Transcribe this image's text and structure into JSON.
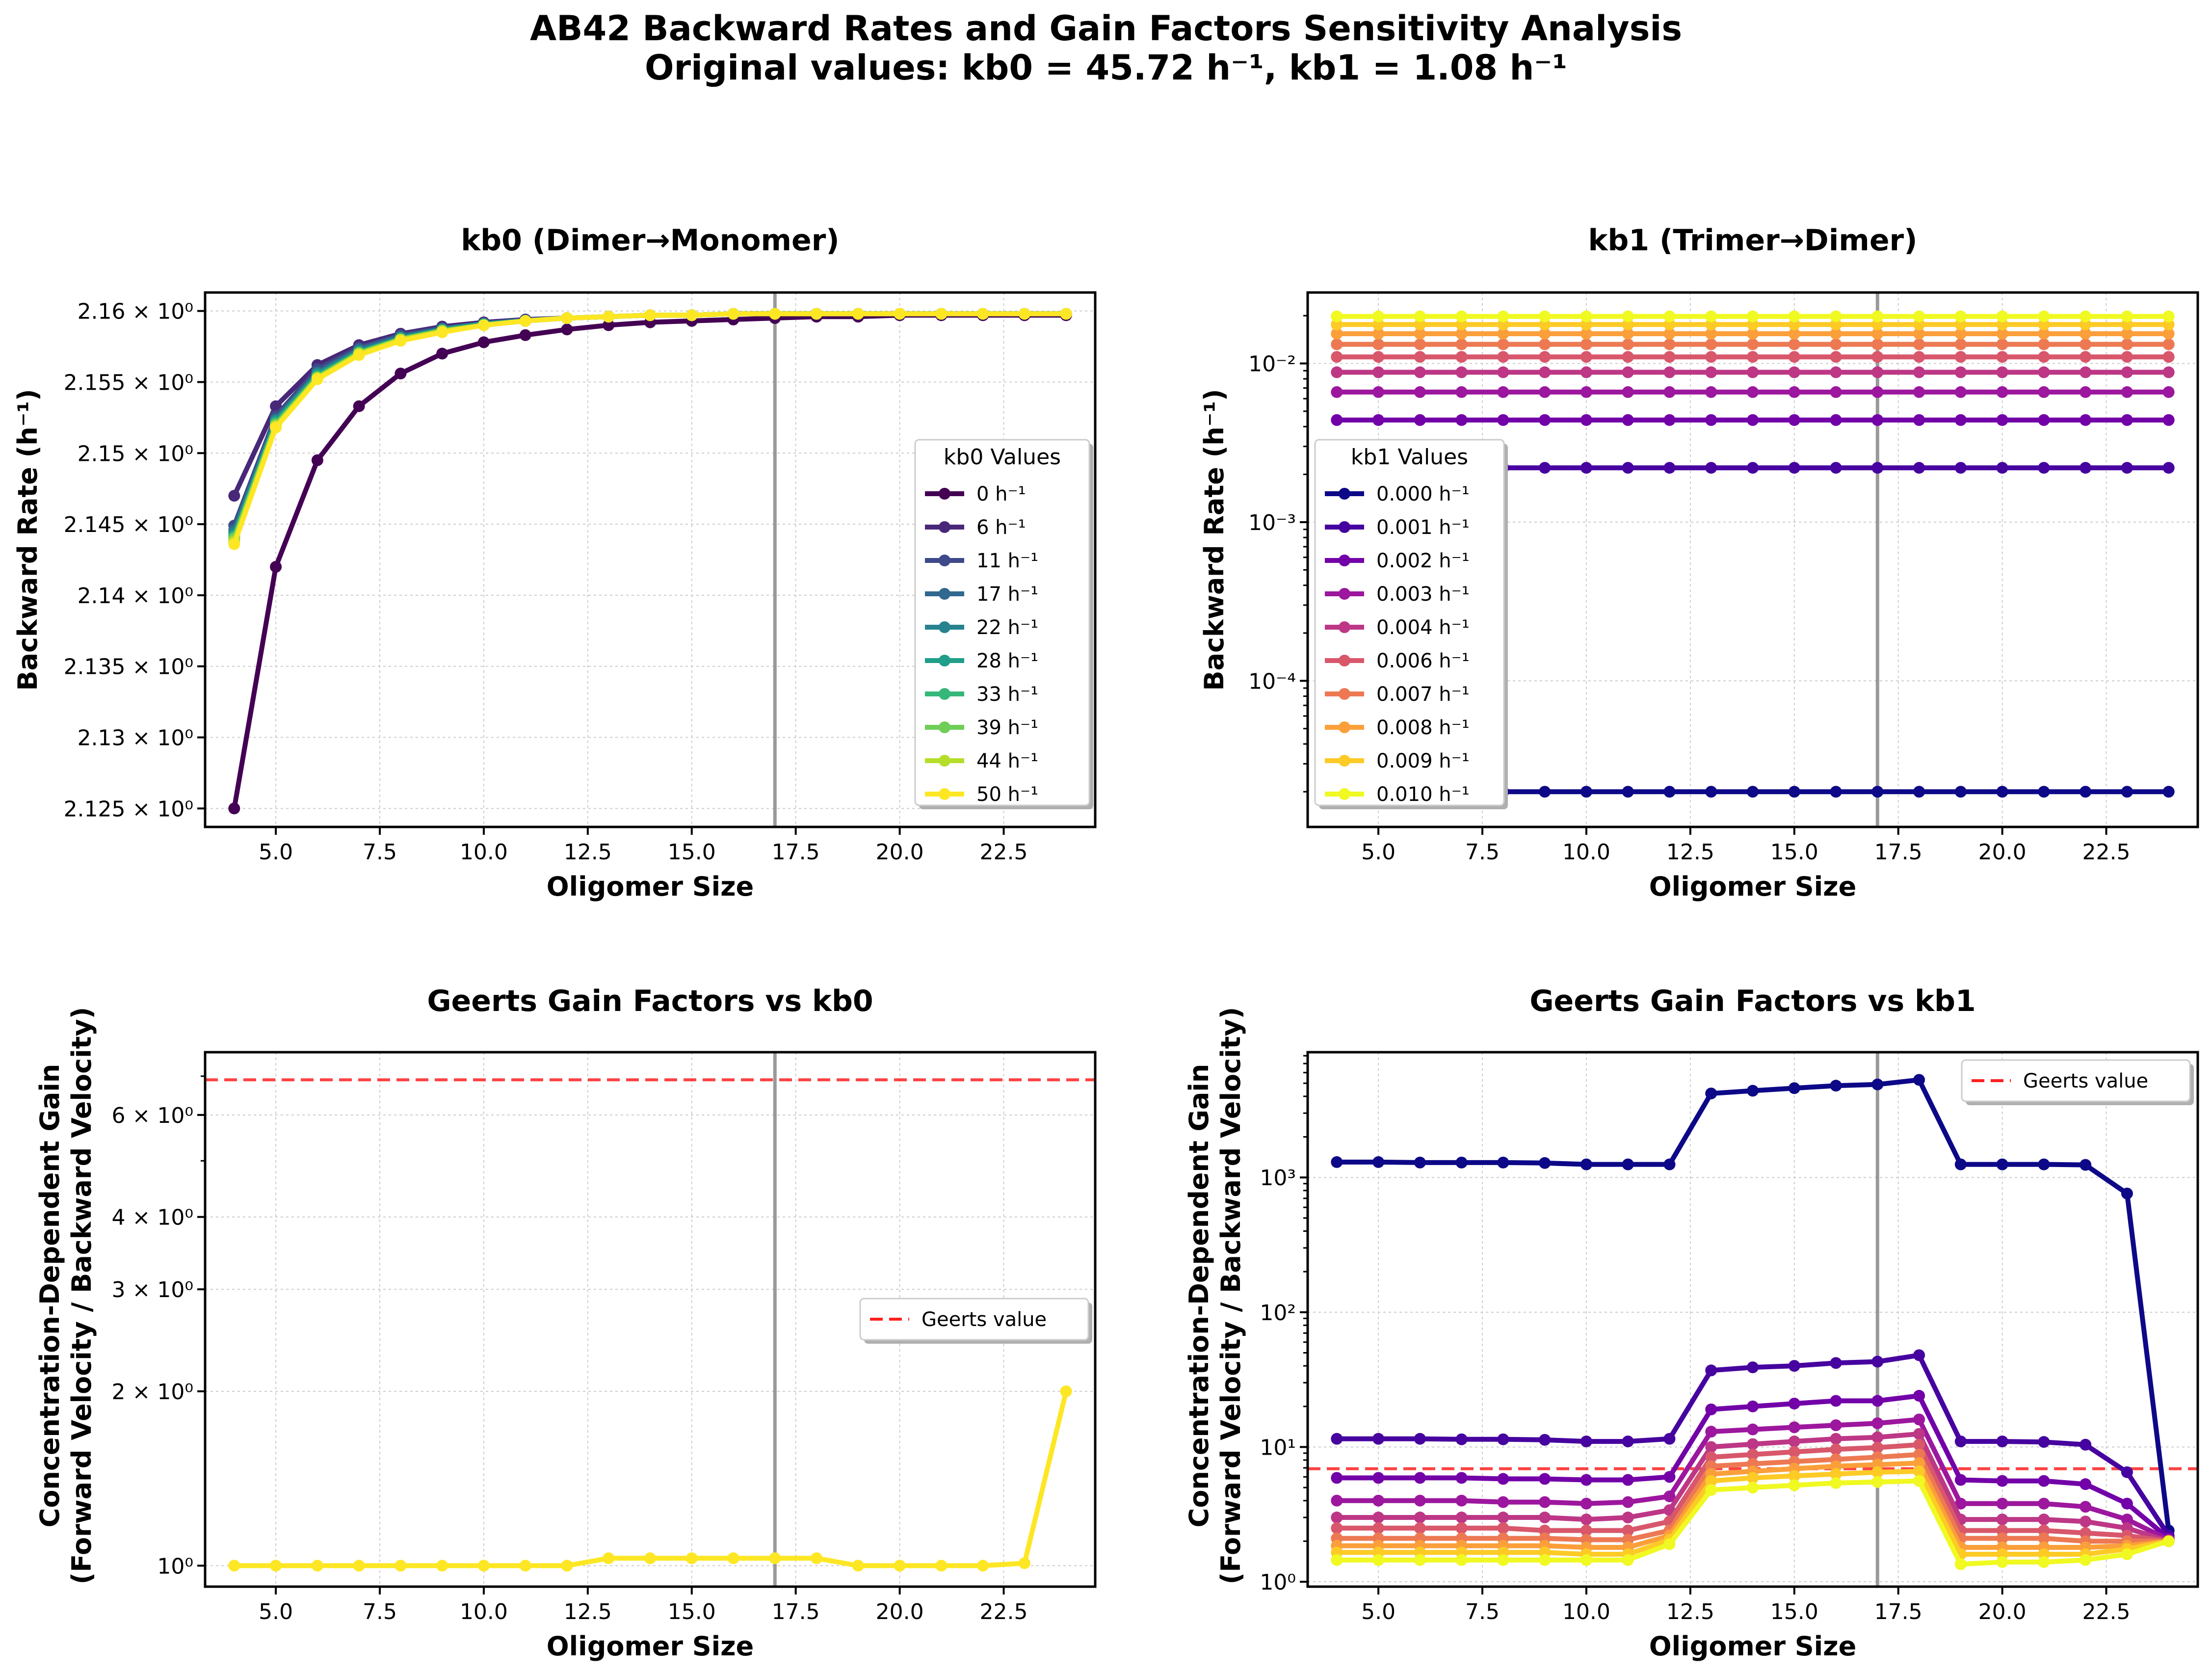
{
  "figure": {
    "title_line1": "AB42 Backward Rates and Gain Factors Sensitivity Analysis",
    "title_line2": "Original values: kb0 = 45.72 h⁻¹, kb1 = 1.08 h⁻¹"
  },
  "chart_data": [
    {
      "id": "kb0-rates",
      "type": "line",
      "title": "kb0 (Dimer→Monomer)",
      "xlabel": "Oligomer Size",
      "ylabel": "Backward Rate (h⁻¹)",
      "xlim": [
        3.3,
        24.7
      ],
      "ylim": [
        2.1237,
        2.1613
      ],
      "yscale": "linear",
      "vline": 17,
      "grid": true,
      "x_ticks": [
        5.0,
        7.5,
        10.0,
        12.5,
        15.0,
        17.5,
        20.0,
        22.5
      ],
      "x_tick_labels": [
        "5.0",
        "7.5",
        "10.0",
        "12.5",
        "15.0",
        "17.5",
        "20.0",
        "22.5"
      ],
      "y_ticks": [
        2.125,
        2.13,
        2.135,
        2.14,
        2.145,
        2.15,
        2.155,
        2.16
      ],
      "y_tick_labels": [
        "2.125 × 10⁰",
        "2.13 × 10⁰",
        "2.135 × 10⁰",
        "2.14 × 10⁰",
        "2.145 × 10⁰",
        "2.15 × 10⁰",
        "2.155 × 10⁰",
        "2.16 × 10⁰"
      ],
      "legend": {
        "title": "kb0 Values",
        "placement": "center-right"
      },
      "x": [
        4,
        5,
        6,
        7,
        8,
        9,
        10,
        11,
        12,
        13,
        14,
        15,
        16,
        17,
        18,
        19,
        20,
        21,
        22,
        23,
        24
      ],
      "series": [
        {
          "name": "0 h⁻¹",
          "color": "#440154",
          "values": [
            2.125,
            2.142,
            2.1495,
            2.1533,
            2.1556,
            2.157,
            2.1578,
            2.1583,
            2.1587,
            2.159,
            2.1592,
            2.1593,
            2.1594,
            2.1595,
            2.1596,
            2.1596,
            2.1597,
            2.1597,
            2.1597,
            2.1597,
            2.1597
          ]
        },
        {
          "name": "6 h⁻¹",
          "color": "#482878",
          "values": [
            2.147,
            2.1533,
            2.1562,
            2.1576,
            2.1584,
            2.1589,
            2.1592,
            2.1594,
            2.1595,
            2.1596,
            2.1597,
            2.1597,
            2.1598,
            2.1598,
            2.1598,
            2.1598,
            2.1598,
            2.1598,
            2.1598,
            2.1598,
            2.1598
          ]
        },
        {
          "name": "11 h⁻¹",
          "color": "#3e4989",
          "values": [
            2.1449,
            2.1526,
            2.1559,
            2.1574,
            2.1583,
            2.1588,
            2.1591,
            2.1594,
            2.1595,
            2.1596,
            2.1597,
            2.1597,
            2.1598,
            2.1598,
            2.1598,
            2.1598,
            2.1598,
            2.1598,
            2.1598,
            2.1598,
            2.1598
          ]
        },
        {
          "name": "17 h⁻¹",
          "color": "#31688e",
          "values": [
            2.1446,
            2.1524,
            2.1557,
            2.1573,
            2.1582,
            2.1587,
            2.1591,
            2.1593,
            2.1595,
            2.1596,
            2.1597,
            2.1597,
            2.1598,
            2.1598,
            2.1598,
            2.1598,
            2.1598,
            2.1598,
            2.1598,
            2.1598,
            2.1598
          ]
        },
        {
          "name": "22 h⁻¹",
          "color": "#26828e",
          "values": [
            2.1444,
            2.1523,
            2.1556,
            2.1572,
            2.1581,
            2.1587,
            2.1591,
            2.1593,
            2.1595,
            2.1596,
            2.1597,
            2.1597,
            2.1598,
            2.1598,
            2.1598,
            2.1598,
            2.1598,
            2.1598,
            2.1598,
            2.1598,
            2.1598
          ]
        },
        {
          "name": "28 h⁻¹",
          "color": "#1f9e89",
          "values": [
            2.1442,
            2.1522,
            2.1555,
            2.1571,
            2.1581,
            2.1587,
            2.1591,
            2.1593,
            2.1595,
            2.1596,
            2.1597,
            2.1597,
            2.1598,
            2.1598,
            2.1598,
            2.1598,
            2.1598,
            2.1598,
            2.1598,
            2.1598,
            2.1598
          ]
        },
        {
          "name": "33 h⁻¹",
          "color": "#35b779",
          "values": [
            2.1441,
            2.1521,
            2.1554,
            2.1571,
            2.158,
            2.1586,
            2.159,
            2.1593,
            2.1595,
            2.1596,
            2.1597,
            2.1597,
            2.1598,
            2.1598,
            2.1598,
            2.1598,
            2.1598,
            2.1598,
            2.1598,
            2.1598,
            2.1598
          ]
        },
        {
          "name": "39 h⁻¹",
          "color": "#6ece58",
          "values": [
            2.144,
            2.152,
            2.1553,
            2.157,
            2.158,
            2.1586,
            2.159,
            2.1593,
            2.1595,
            2.1596,
            2.1597,
            2.1597,
            2.1598,
            2.1598,
            2.1598,
            2.1598,
            2.1598,
            2.1598,
            2.1598,
            2.1598,
            2.1598
          ]
        },
        {
          "name": "44 h⁻¹",
          "color": "#b5de2b",
          "values": [
            2.1438,
            2.1519,
            2.1553,
            2.157,
            2.158,
            2.1586,
            2.159,
            2.1593,
            2.1595,
            2.1596,
            2.1597,
            2.1597,
            2.1598,
            2.1598,
            2.1598,
            2.1598,
            2.1598,
            2.1598,
            2.1598,
            2.1598,
            2.1598
          ]
        },
        {
          "name": "50 h⁻¹",
          "color": "#fde725",
          "values": [
            2.1436,
            2.1518,
            2.1552,
            2.1569,
            2.1579,
            2.1585,
            2.159,
            2.1593,
            2.1595,
            2.1596,
            2.1597,
            2.1597,
            2.1598,
            2.1598,
            2.1598,
            2.1598,
            2.1598,
            2.1598,
            2.1598,
            2.1598,
            2.1598
          ]
        }
      ]
    },
    {
      "id": "kb1-rates",
      "type": "line",
      "title": "kb1 (Trimer→Dimer)",
      "xlabel": "Oligomer Size",
      "ylabel": "Backward Rate (h⁻¹)",
      "xlim": [
        3.3,
        24.7
      ],
      "ylim": [
        1.2e-05,
        0.028
      ],
      "yscale": "log",
      "vline": 17,
      "grid": true,
      "x_ticks": [
        5.0,
        7.5,
        10.0,
        12.5,
        15.0,
        17.5,
        20.0,
        22.5
      ],
      "x_tick_labels": [
        "5.0",
        "7.5",
        "10.0",
        "12.5",
        "15.0",
        "17.5",
        "20.0",
        "22.5"
      ],
      "y_ticks": [
        0.0001,
        0.001,
        0.01
      ],
      "y_tick_labels": [
        "10⁻⁴",
        "10⁻³",
        "10⁻²"
      ],
      "legend": {
        "title": "kb1 Values",
        "placement": "center-left"
      },
      "x": [
        4,
        5,
        6,
        7,
        8,
        9,
        10,
        11,
        12,
        13,
        14,
        15,
        16,
        17,
        18,
        19,
        20,
        21,
        22,
        23,
        24
      ],
      "series": [
        {
          "name": "0.000 h⁻¹",
          "color": "#0d0887",
          "value": 2e-05
        },
        {
          "name": "0.001 h⁻¹",
          "color": "#46039f",
          "value": 0.0022
        },
        {
          "name": "0.002 h⁻¹",
          "color": "#7201a8",
          "value": 0.0044
        },
        {
          "name": "0.003 h⁻¹",
          "color": "#9c179e",
          "value": 0.0066
        },
        {
          "name": "0.004 h⁻¹",
          "color": "#bd3786",
          "value": 0.0088
        },
        {
          "name": "0.006 h⁻¹",
          "color": "#d8576b",
          "value": 0.011
        },
        {
          "name": "0.007 h⁻¹",
          "color": "#ed7953",
          "value": 0.0132
        },
        {
          "name": "0.008 h⁻¹",
          "color": "#fb9f3a",
          "value": 0.0154
        },
        {
          "name": "0.009 h⁻¹",
          "color": "#fdca26",
          "value": 0.0176
        },
        {
          "name": "0.010 h⁻¹",
          "color": "#f0f921",
          "value": 0.0198
        }
      ]
    },
    {
      "id": "gain-kb0",
      "type": "line",
      "title": "Geerts Gain Factors vs kb0",
      "xlabel": "Oligomer Size",
      "ylabel_line1": "Concentration-Dependent Gain",
      "ylabel_line2": "(Forward Velocity / Backward Velocity)",
      "xlim": [
        3.3,
        24.7
      ],
      "ylim": [
        0.92,
        7.7
      ],
      "yscale": "log",
      "vline": 17,
      "hline": 6.9,
      "hline_label": "Geerts value",
      "grid": true,
      "x_ticks": [
        5.0,
        7.5,
        10.0,
        12.5,
        15.0,
        17.5,
        20.0,
        22.5
      ],
      "x_tick_labels": [
        "5.0",
        "7.5",
        "10.0",
        "12.5",
        "15.0",
        "17.5",
        "20.0",
        "22.5"
      ],
      "y_ticks": [
        1,
        2,
        3,
        4,
        6
      ],
      "y_tick_labels": [
        "10⁰",
        "2 × 10⁰",
        "3 × 10⁰",
        "4 × 10⁰",
        "6 × 10⁰"
      ],
      "legend": {
        "placement": "center-right"
      },
      "x": [
        4,
        5,
        6,
        7,
        8,
        9,
        10,
        11,
        12,
        13,
        14,
        15,
        16,
        17,
        18,
        19,
        20,
        21,
        22,
        23,
        24
      ],
      "series": [
        {
          "color": "#fde725",
          "values": [
            1.0,
            1.0,
            1.0,
            1.0,
            1.0,
            1.0,
            1.0,
            1.0,
            1.0,
            1.03,
            1.03,
            1.03,
            1.03,
            1.03,
            1.03,
            1.0,
            1.0,
            1.0,
            1.0,
            1.01,
            2.0
          ]
        }
      ]
    },
    {
      "id": "gain-kb1",
      "type": "line",
      "title": "Geerts Gain Factors vs kb1",
      "xlabel": "Oligomer Size",
      "ylabel_line1": "Concentration-Dependent Gain",
      "ylabel_line2": "(Forward Velocity / Backward Velocity)",
      "xlim": [
        3.3,
        24.7
      ],
      "ylim": [
        0.92,
        8500
      ],
      "yscale": "log",
      "vline": 17,
      "hline": 6.9,
      "hline_label": "Geerts value",
      "grid": true,
      "x_ticks": [
        5.0,
        7.5,
        10.0,
        12.5,
        15.0,
        17.5,
        20.0,
        22.5
      ],
      "x_tick_labels": [
        "5.0",
        "7.5",
        "10.0",
        "12.5",
        "15.0",
        "17.5",
        "20.0",
        "22.5"
      ],
      "y_ticks": [
        1,
        10,
        100,
        1000
      ],
      "y_tick_labels": [
        "10⁰",
        "10¹",
        "10²",
        "10³"
      ],
      "legend": {
        "placement": "top-right"
      },
      "x": [
        4,
        5,
        6,
        7,
        8,
        9,
        10,
        11,
        12,
        13,
        14,
        15,
        16,
        17,
        18,
        19,
        20,
        21,
        22,
        23,
        24
      ],
      "series": [
        {
          "color": "#0d0887",
          "values": [
            1300,
            1300,
            1290,
            1290,
            1290,
            1280,
            1250,
            1250,
            1250,
            4200,
            4400,
            4600,
            4800,
            4900,
            5300,
            1250,
            1250,
            1250,
            1240,
            760,
            2.4
          ]
        },
        {
          "color": "#46039f",
          "values": [
            11.5,
            11.5,
            11.5,
            11.4,
            11.4,
            11.3,
            11.0,
            11.0,
            11.5,
            37,
            39,
            40,
            42,
            43,
            48,
            11.0,
            11.0,
            10.9,
            10.4,
            6.5,
            2.2
          ]
        },
        {
          "color": "#7201a8",
          "values": [
            5.9,
            5.9,
            5.9,
            5.9,
            5.8,
            5.8,
            5.7,
            5.7,
            6.0,
            19,
            20,
            21,
            22,
            22,
            24,
            5.7,
            5.6,
            5.6,
            5.3,
            3.8,
            2.1
          ]
        },
        {
          "color": "#9c179e",
          "values": [
            4.0,
            4.0,
            4.0,
            4.0,
            3.9,
            3.9,
            3.8,
            3.9,
            4.3,
            13,
            13.5,
            14,
            14.5,
            15,
            16,
            3.8,
            3.8,
            3.8,
            3.6,
            2.9,
            2.05
          ]
        },
        {
          "color": "#bd3786",
          "values": [
            3.0,
            3.0,
            3.0,
            3.0,
            3.0,
            3.0,
            2.9,
            3.0,
            3.4,
            10,
            10.5,
            11,
            11.5,
            11.8,
            12.5,
            2.9,
            2.9,
            2.9,
            2.8,
            2.5,
            2.0
          ]
        },
        {
          "color": "#d8576b",
          "values": [
            2.5,
            2.5,
            2.5,
            2.5,
            2.5,
            2.4,
            2.4,
            2.4,
            2.8,
            8.4,
            8.8,
            9.2,
            9.6,
            9.9,
            10.4,
            2.4,
            2.4,
            2.4,
            2.3,
            2.2,
            2.0
          ]
        },
        {
          "color": "#ed7953",
          "values": [
            2.1,
            2.1,
            2.1,
            2.1,
            2.1,
            2.1,
            2.05,
            2.05,
            2.4,
            7.2,
            7.5,
            7.8,
            8.1,
            8.4,
            8.8,
            2.1,
            2.1,
            2.1,
            2.0,
            2.0,
            2.0
          ]
        },
        {
          "color": "#fb9f3a",
          "values": [
            1.85,
            1.85,
            1.85,
            1.85,
            1.85,
            1.85,
            1.8,
            1.8,
            2.2,
            6.3,
            6.6,
            6.9,
            7.2,
            7.4,
            7.6,
            1.8,
            1.8,
            1.8,
            1.8,
            1.85,
            2.0
          ]
        },
        {
          "color": "#fdca26",
          "values": [
            1.65,
            1.65,
            1.65,
            1.65,
            1.65,
            1.65,
            1.6,
            1.6,
            2.05,
            5.6,
            5.9,
            6.1,
            6.3,
            6.5,
            6.6,
            1.6,
            1.6,
            1.6,
            1.6,
            1.75,
            2.0
          ]
        },
        {
          "color": "#f0f921",
          "values": [
            1.45,
            1.45,
            1.45,
            1.45,
            1.45,
            1.45,
            1.45,
            1.45,
            1.9,
            4.8,
            5.0,
            5.2,
            5.4,
            5.5,
            5.6,
            1.35,
            1.4,
            1.4,
            1.45,
            1.6,
            2.0
          ]
        }
      ]
    }
  ]
}
